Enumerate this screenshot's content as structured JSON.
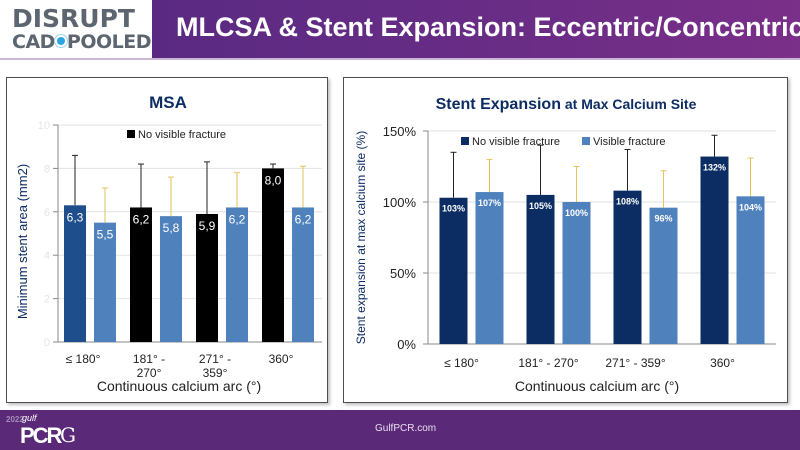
{
  "header": {
    "logo_line1": "DISRUPT",
    "logo_line2a": "CAD",
    "logo_line2b": "POOLED",
    "title": "MLCSA & Stent Expansion: Eccentric/Concentric"
  },
  "footer": {
    "year": "2022",
    "brand_small": "gulf",
    "brand": "PCR",
    "brand_suffix": "G",
    "url": "GulfPCR.com"
  },
  "colors": {
    "title_bar": "#5a2a82",
    "footer": "#5a2a78",
    "no_fracture_left_first": "#1f4e8c",
    "no_fracture_left": "#000000",
    "no_fracture_right": "#0c2d63",
    "visible_fracture": "#4f81bd",
    "error_no_fracture": "#222222",
    "error_visible": "#e6c25a"
  },
  "chart_data": [
    {
      "type": "bar",
      "title": "MSA",
      "xlabel": "Continuous calcium arc (°)",
      "ylabel": "Minimum stent area (mm2)",
      "ylim": [
        0,
        10
      ],
      "yticks": [
        "0",
        "2",
        "4",
        "6",
        "8",
        "10"
      ],
      "grid": true,
      "legend": [
        "No visible fracture"
      ],
      "legend_position": "top-center",
      "categories": [
        "≤ 180°",
        "181° - 270°",
        "271° - 359°",
        "360°"
      ],
      "series": [
        {
          "name": "No visible fracture",
          "values": [
            6.3,
            6.2,
            5.9,
            8.0
          ],
          "labels": [
            "6,3",
            "6,2",
            "5,9",
            "8,0"
          ],
          "error_top": [
            8.6,
            8.2,
            8.3,
            8.2
          ]
        },
        {
          "name": "Visible fracture",
          "values": [
            5.5,
            5.8,
            6.2,
            6.2
          ],
          "labels": [
            "5,5",
            "5,8",
            "6,2",
            "6,2"
          ],
          "error_top": [
            7.1,
            7.6,
            7.8,
            8.1
          ]
        }
      ]
    },
    {
      "type": "bar",
      "title_bold": "Stent Expansion",
      "title_rest": " at Max Calcium Site",
      "xlabel": "Continuous calcium arc (°)",
      "ylabel": "Stent expansion at max calcium site (%)",
      "ylim": [
        0,
        150
      ],
      "yticks": [
        "0%",
        "50%",
        "100%",
        "150%"
      ],
      "grid": true,
      "legend": [
        "No visible fracture",
        "Visible fracture"
      ],
      "legend_position": "top-center",
      "categories": [
        "≤ 180°",
        "181° - 270°",
        "271° - 359°",
        "360°"
      ],
      "series": [
        {
          "name": "No visible fracture",
          "values": [
            103,
            105,
            108,
            132
          ],
          "labels": [
            "103%",
            "105%",
            "108%",
            "132%"
          ],
          "error_top": [
            135,
            140,
            137,
            147
          ]
        },
        {
          "name": "Visible fracture",
          "values": [
            107,
            100,
            96,
            104
          ],
          "labels": [
            "107%",
            "100%",
            "96%",
            "104%"
          ],
          "error_top": [
            130,
            125,
            122,
            131
          ]
        }
      ]
    }
  ]
}
